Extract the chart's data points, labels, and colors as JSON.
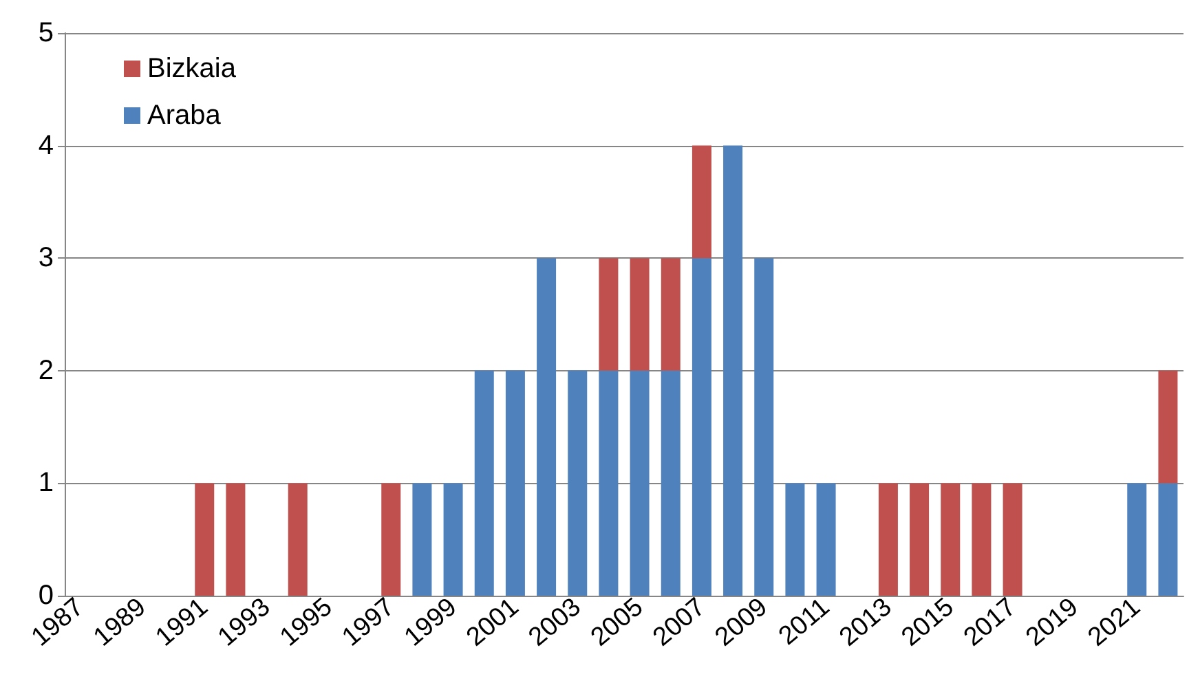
{
  "chart_data": {
    "type": "bar",
    "stacked": true,
    "categories": [
      "1987",
      null,
      "1989",
      null,
      "1991",
      null,
      "1993",
      null,
      "1995",
      null,
      "1997",
      null,
      "1999",
      null,
      "2001",
      null,
      "2003",
      null,
      "2005",
      null,
      "2007",
      null,
      "2009",
      null,
      "2011",
      null,
      "2013",
      null,
      "2015",
      null,
      "2017",
      null,
      "2019",
      null,
      "2021",
      null
    ],
    "series": [
      {
        "name": "Araba",
        "color": "#4f81bd",
        "values": [
          0,
          0,
          0,
          0,
          0,
          0,
          0,
          0,
          0,
          0,
          0,
          1,
          1,
          2,
          2,
          3,
          2,
          2,
          2,
          2,
          3,
          4,
          3,
          1,
          1,
          0,
          0,
          0,
          0,
          0,
          0,
          0,
          0,
          0,
          1,
          1
        ]
      },
      {
        "name": "Bizkaia",
        "color": "#c0504d",
        "values": [
          0,
          0,
          0,
          0,
          1,
          1,
          0,
          1,
          0,
          0,
          1,
          0,
          0,
          0,
          0,
          0,
          0,
          1,
          1,
          1,
          1,
          0,
          0,
          0,
          0,
          0,
          1,
          1,
          1,
          1,
          1,
          0,
          0,
          0,
          0,
          1
        ]
      }
    ],
    "ylim": [
      0,
      5
    ],
    "yticks": [
      0,
      1,
      2,
      3,
      4,
      5
    ],
    "grid": "y",
    "legend": "top left"
  }
}
